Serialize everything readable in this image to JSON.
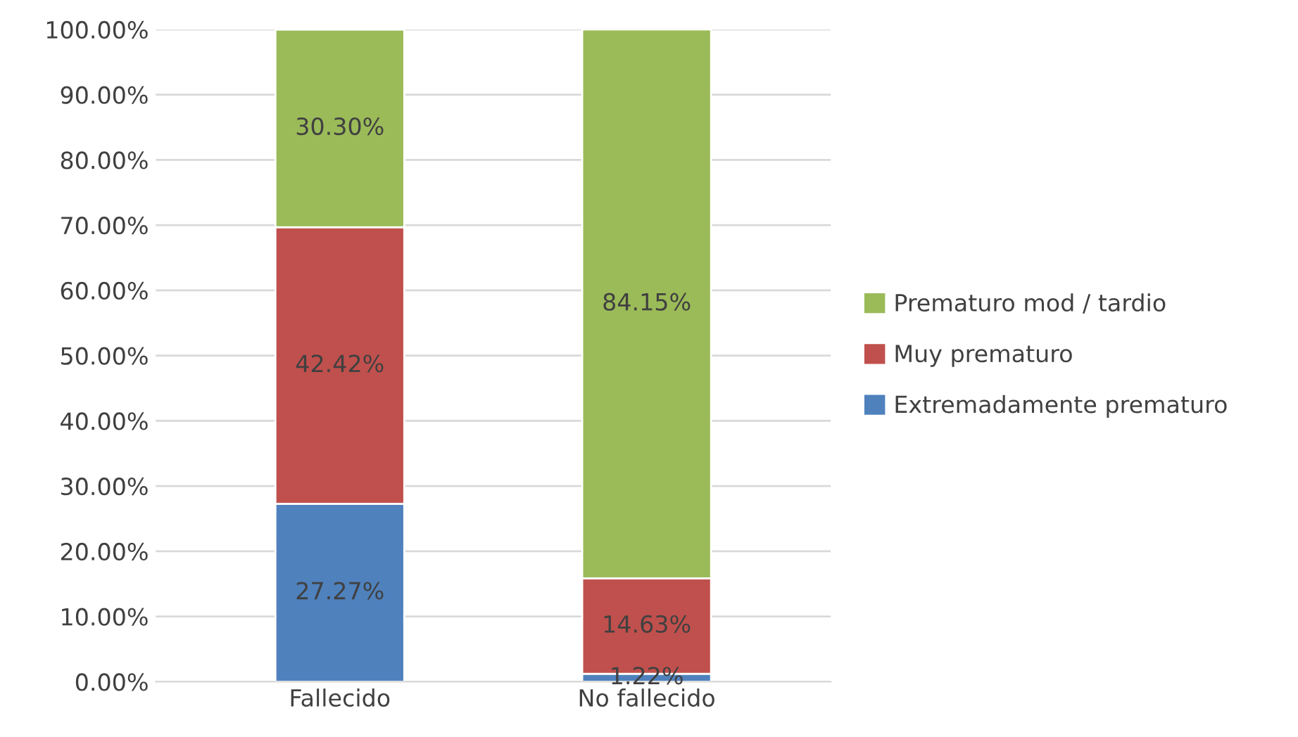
{
  "chart_data": {
    "type": "bar",
    "stacked": true,
    "categories": [
      "Fallecido",
      "No fallecido"
    ],
    "series": [
      {
        "name": "Extremadamente prematuro",
        "color": "#4f81bd",
        "values": [
          27.27,
          1.22
        ],
        "value_labels": [
          "27.27%",
          "1.22%"
        ]
      },
      {
        "name": "Muy prematuro",
        "color": "#c0504d",
        "values": [
          42.42,
          14.63
        ],
        "value_labels": [
          "42.42%",
          "14.63%"
        ]
      },
      {
        "name": "Prematuro mod / tardio",
        "color": "#9bbb59",
        "values": [
          30.3,
          84.15
        ],
        "value_labels": [
          "30.30%",
          "84.15%"
        ]
      }
    ],
    "ylim": [
      0,
      100
    ],
    "yticks": [
      {
        "value": 0,
        "label": "0.00%"
      },
      {
        "value": 10,
        "label": "10.00%"
      },
      {
        "value": 20,
        "label": "20.00%"
      },
      {
        "value": 30,
        "label": "30.00%"
      },
      {
        "value": 40,
        "label": "40.00%"
      },
      {
        "value": 50,
        "label": "50.00%"
      },
      {
        "value": 60,
        "label": "60.00%"
      },
      {
        "value": 70,
        "label": "70.00%"
      },
      {
        "value": 80,
        "label": "80.00%"
      },
      {
        "value": 90,
        "label": "90.00%"
      },
      {
        "value": 100,
        "label": "100.00%"
      }
    ],
    "grid": "y",
    "legend": "right"
  }
}
